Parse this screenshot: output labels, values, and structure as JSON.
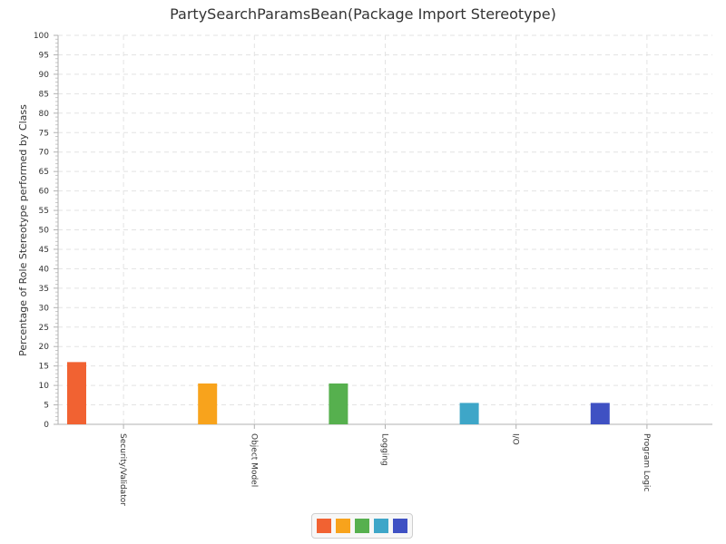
{
  "chart_data": {
    "type": "bar",
    "title": "PartySearchParamsBean(Package Import Stereotype)",
    "xlabel": "",
    "ylabel": "Percentage of Role Stereotype performed by Class",
    "categories": [
      "Security/Validator",
      "Object Model",
      "Logging",
      "I/O",
      "Program Logic"
    ],
    "values": [
      16,
      10.5,
      10.5,
      5.5,
      5.5
    ],
    "colors": [
      "#f16232",
      "#f8a31c",
      "#56b04e",
      "#3ea6c8",
      "#3f51c3"
    ],
    "ylim": [
      0,
      100
    ],
    "ytick_step": 5,
    "grid": true,
    "legend": "bottom-center"
  }
}
